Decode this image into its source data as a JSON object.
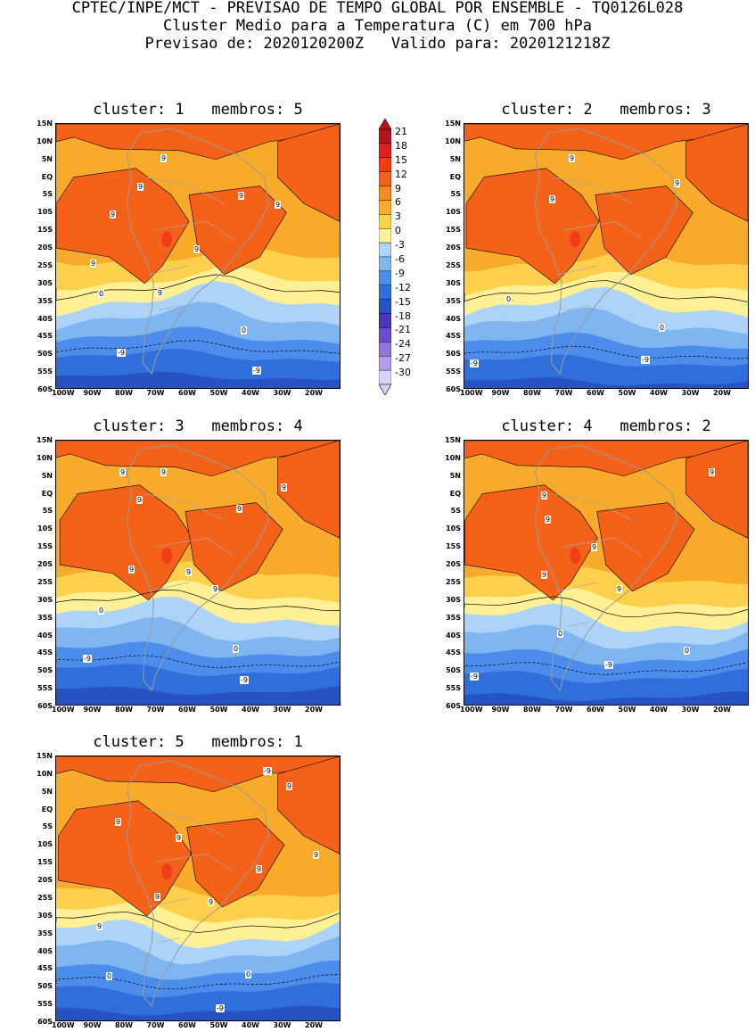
{
  "title": {
    "line1": "CPTEC/INPE/MCT - PREVISAO DE TEMPO GLOBAL POR ENSEMBLE - TQ0126L028",
    "line2": "Cluster Medio para a Temperatura (C) em 700 hPa",
    "line3": "Previsao de: 2020120200Z   Valido para: 2020121218Z"
  },
  "axes": {
    "lat_ticks": [
      "15N",
      "10N",
      "5N",
      "EQ",
      "5S",
      "10S",
      "15S",
      "20S",
      "25S",
      "30S",
      "35S",
      "40S",
      "45S",
      "50S",
      "55S",
      "60S"
    ],
    "lon_ticks": [
      "100W",
      "90W",
      "80W",
      "70W",
      "60W",
      "50W",
      "40W",
      "30W",
      "20W"
    ]
  },
  "colorbar": {
    "labels": [
      "21",
      "18",
      "15",
      "12",
      "9",
      "6",
      "3",
      "0",
      "-3",
      "-6",
      "-9",
      "-12",
      "-15",
      "-18",
      "-21",
      "-24",
      "-27",
      "-30"
    ],
    "colors": [
      "#b3141c",
      "#d9211e",
      "#ef3d16",
      "#f4621a",
      "#f58a1e",
      "#f8ab2a",
      "#fcd04c",
      "#fdf095",
      "#aed3f8",
      "#7fb5f1",
      "#4c8deb",
      "#2f6fdc",
      "#2652c2",
      "#4636b8",
      "#6a4ccd",
      "#8f74dc",
      "#b39de8",
      "#dacff4"
    ]
  },
  "panels": [
    {
      "title": "cluster: 1   membros: 5",
      "labels": [
        "9",
        "9",
        "9",
        "9",
        "9",
        "9",
        "9",
        "9",
        "0",
        "0",
        "-9",
        "-9"
      ]
    },
    {
      "title": "cluster: 2   membros: 3",
      "labels": [
        "9",
        "9",
        "9",
        "0",
        "0",
        "-9",
        "-9"
      ]
    },
    {
      "title": "cluster: 3   membros: 4",
      "labels": [
        "9",
        "9",
        "9",
        "9",
        "9",
        "9",
        "9",
        "9",
        "0",
        "0",
        "-9",
        "-9"
      ]
    },
    {
      "title": "cluster: 4   membros: 2",
      "labels": [
        "9",
        "9",
        "9",
        "9",
        "9",
        "9",
        "0",
        "0",
        "-9",
        "-9"
      ]
    },
    {
      "title": "cluster: 5   membros: 1",
      "labels": [
        "9",
        "9",
        "9",
        "9",
        "9",
        "9",
        "9",
        "9",
        "0",
        "0",
        "-9",
        "-9"
      ]
    }
  ]
}
